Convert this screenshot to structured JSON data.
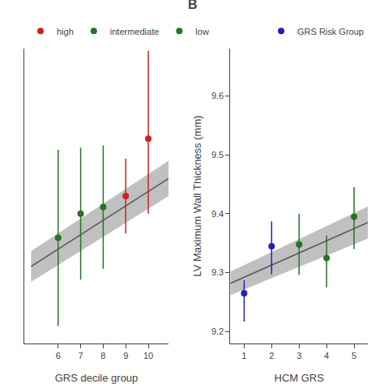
{
  "chart_data": [
    {
      "type": "scatter",
      "xlabel": "GRS decile group",
      "xlim": [
        4.5,
        10.9
      ],
      "ylim": [
        9.18,
        9.85
      ],
      "xticks": [
        6,
        7,
        8,
        9,
        10
      ],
      "tick_labels": "x",
      "grid": false,
      "legend": "top",
      "legend_items": [
        {
          "name": "low",
          "color": "#267326"
        },
        {
          "name": "intermediate",
          "color": "#267326"
        },
        {
          "name": "high",
          "color": "#cc2222"
        }
      ],
      "series": [
        {
          "type": "band",
          "color": "#c0c0c0",
          "x": [
            4.8,
            10.9
          ],
          "lower": [
            9.32,
            9.515
          ],
          "upper": [
            9.39,
            9.595
          ]
        },
        {
          "type": "line",
          "color": "#555555",
          "x": [
            4.8,
            10.9
          ],
          "values": [
            9.355,
            9.555
          ]
        },
        {
          "type": "scatter",
          "marker": "circle",
          "x": [
            6,
            7,
            8,
            9,
            10
          ],
          "values": [
            9.42,
            9.475,
            9.49,
            9.515,
            9.645
          ],
          "error_minus": [
            0.2,
            0.15,
            0.14,
            0.085,
            0.17
          ],
          "error_plus": [
            0.2,
            0.15,
            0.14,
            0.085,
            0.2
          ],
          "colors": [
            "#267326",
            "#267326",
            "#267326",
            "#cc2222",
            "#cc2222"
          ]
        }
      ]
    },
    {
      "type": "scatter",
      "label": "B",
      "xlabel": "HCM GRS",
      "ylabel": "LV Maximum Wall Thickness (mm)",
      "xlim": [
        0.5,
        5.5
      ],
      "ylim": [
        9.18,
        9.68
      ],
      "xticks": [
        1,
        2,
        3,
        4,
        5
      ],
      "yticks": [
        9.2,
        9.3,
        9.4,
        9.5,
        9.6
      ],
      "grid": false,
      "legend": "upper right",
      "legend_items": [
        {
          "name": "GRS Risk Group",
          "color": "#2222bb"
        }
      ],
      "series": [
        {
          "type": "band",
          "color": "#c0c0c0",
          "x": [
            0.5,
            5.5
          ],
          "lower": [
            9.262,
            9.358
          ],
          "upper": [
            9.302,
            9.412
          ]
        },
        {
          "type": "line",
          "color": "#555555",
          "x": [
            0.5,
            5.5
          ],
          "values": [
            9.282,
            9.385
          ]
        },
        {
          "type": "scatter",
          "marker": "circle",
          "x": [
            1,
            2,
            3,
            4,
            5
          ],
          "values": [
            9.265,
            9.345,
            9.348,
            9.325,
            9.395
          ],
          "error_minus": [
            0.048,
            0.048,
            0.052,
            0.05,
            0.055
          ],
          "error_plus": [
            0.022,
            0.042,
            0.052,
            0.038,
            0.05
          ],
          "colors": [
            "#2222bb",
            "#2222bb",
            "#267326",
            "#267326",
            "#267326"
          ]
        }
      ]
    }
  ]
}
